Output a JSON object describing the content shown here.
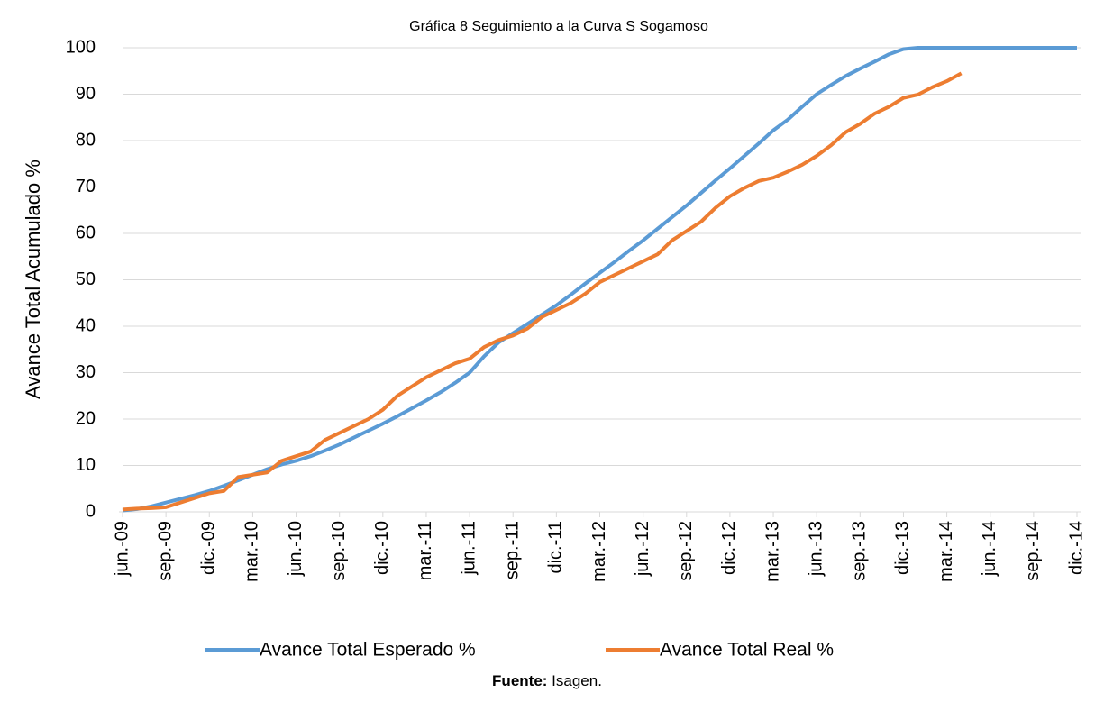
{
  "chart_data": {
    "type": "line",
    "title": "Gráfica 8 Seguimiento a la Curva S Sogamoso",
    "y_label": "Avance Total Acumulado %",
    "categories": [
      "jun.-09",
      null,
      null,
      "sep.-09",
      null,
      null,
      "dic.-09",
      null,
      null,
      "mar.-10",
      null,
      null,
      "jun.-10",
      null,
      null,
      "sep.-10",
      null,
      null,
      "dic.-10",
      null,
      null,
      "mar.-11",
      null,
      null,
      "jun.-11",
      null,
      null,
      "sep.-11",
      null,
      null,
      "dic.-11",
      null,
      null,
      "mar.-12",
      null,
      null,
      "jun.-12",
      null,
      null,
      "sep.-12",
      null,
      null,
      "dic.-12",
      null,
      null,
      "mar.-13",
      null,
      null,
      "jun.-13",
      null,
      null,
      "sep.-13",
      null,
      null,
      "dic.-13",
      null,
      null,
      "mar.-14",
      null,
      null,
      "jun.-14",
      null,
      null,
      "sep.-14",
      null,
      null,
      "dic.-14"
    ],
    "series": [
      {
        "name": "Avance Total Esperado %",
        "color": "#5b9bd5",
        "values": [
          0.3,
          0.6,
          1.2,
          2,
          2.8,
          3.6,
          4.5,
          5.6,
          6.8,
          8,
          9.2,
          10.2,
          11,
          12,
          13.2,
          14.5,
          16,
          17.5,
          19,
          20.6,
          22.3,
          24,
          25.8,
          27.8,
          30,
          33.5,
          36.5,
          38.5,
          40.5,
          42.5,
          44.5,
          46.8,
          49.2,
          51.5,
          53.8,
          56.2,
          58.5,
          61,
          63.5,
          66,
          68.7,
          71.4,
          74,
          76.7,
          79.4,
          82.2,
          84.5,
          87.3,
          90,
          92,
          93.9,
          95.5,
          97,
          98.6,
          99.7,
          100,
          100,
          100,
          100,
          100,
          100,
          100,
          100,
          100,
          100,
          100,
          100
        ]
      },
      {
        "name": "Avance Total Real %",
        "color": "#ed7d31",
        "values": [
          0.5,
          0.7,
          0.8,
          1,
          2,
          3,
          4,
          4.5,
          7.5,
          8,
          8.5,
          11,
          12,
          13,
          15.5,
          17,
          18.5,
          20,
          22,
          25,
          27,
          29,
          30.5,
          32,
          33,
          35.5,
          37,
          38,
          39.5,
          42,
          43.5,
          45,
          47,
          49.5,
          51,
          52.5,
          54,
          55.5,
          58.5,
          60.5,
          62.5,
          65.5,
          68,
          69.8,
          71.3,
          72,
          73.3,
          74.8,
          76.7,
          79,
          81.8,
          83.6,
          85.8,
          87.3,
          89.2,
          89.9,
          91.5,
          92.8,
          94.5,
          null,
          null,
          null,
          null,
          null,
          null,
          null,
          null
        ]
      }
    ],
    "ylim": [
      0,
      100
    ],
    "yticks": [
      0,
      10,
      20,
      30,
      40,
      50,
      60,
      70,
      80,
      90,
      100
    ],
    "grid": true
  },
  "source": {
    "label": "Fuente:",
    "text": "Isagen."
  }
}
